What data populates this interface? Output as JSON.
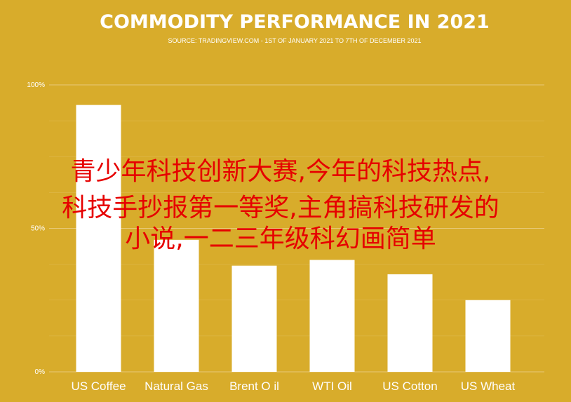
{
  "colors": {
    "background": "#d8ac2b",
    "bar": "#ffffff",
    "grid": "#e7c978",
    "text": "#ffffff",
    "overlay_text": "#e60000"
  },
  "overlay": {
    "lines": [
      "青少年科技创新大赛,今年的科技热点,",
      "科技手抄报第一等奖,主角搞科技研发的",
      "小说,一二三年级科幻画简单"
    ]
  },
  "chart_data": {
    "type": "bar",
    "title": "COMMODITY PERFORMANCE IN 2021",
    "subtitle": "SOURCE: TRADINGVIEW.COM - 1ST OF JANUARY 2021 TO 7TH OF DECEMBER 2021",
    "xlabel": "",
    "ylabel": "",
    "categories": [
      "US Coffee",
      "Natural Gas",
      "Brent O il",
      "WTI Oil",
      "US Cotton",
      "US Wheat"
    ],
    "values": [
      93,
      46,
      37,
      39,
      34,
      25
    ],
    "ylim": [
      0,
      100
    ],
    "yticks": [
      0,
      50,
      100
    ],
    "ytick_labels": [
      "0%",
      "50%",
      "100%"
    ],
    "grid": true,
    "legend": "none"
  }
}
